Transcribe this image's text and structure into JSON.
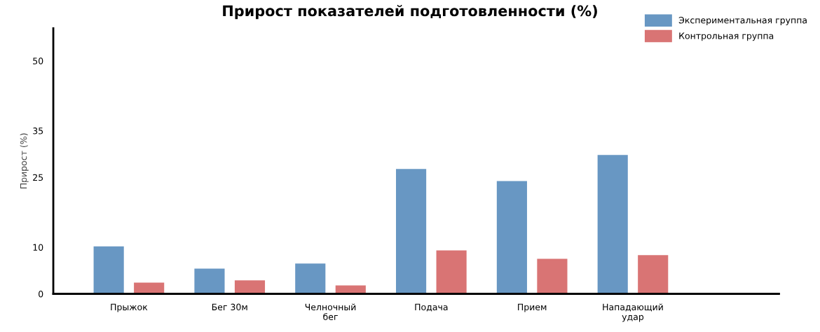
{
  "chart_data": {
    "type": "bar",
    "title": "Прирост показателей подготовленности (%)",
    "ylabel": "Прирост (%)",
    "categories": [
      "Прыжок",
      "Бег 30м",
      "Челночный\nбег",
      "Подача",
      "Прием",
      "Нападающий\nудар"
    ],
    "series": [
      {
        "name": "Экспериментальная группа",
        "color": "#6897c3",
        "values": [
          10.2,
          5.4,
          6.5,
          26.8,
          24.2,
          29.8
        ]
      },
      {
        "name": "Контрольная группа",
        "color": "#d97474",
        "values": [
          2.4,
          2.9,
          1.8,
          9.3,
          7.5,
          8.3
        ]
      }
    ],
    "ylim": [
      0,
      57
    ],
    "yticks": [
      0,
      10,
      25,
      35,
      50
    ],
    "grid": false,
    "legend": "top right"
  }
}
